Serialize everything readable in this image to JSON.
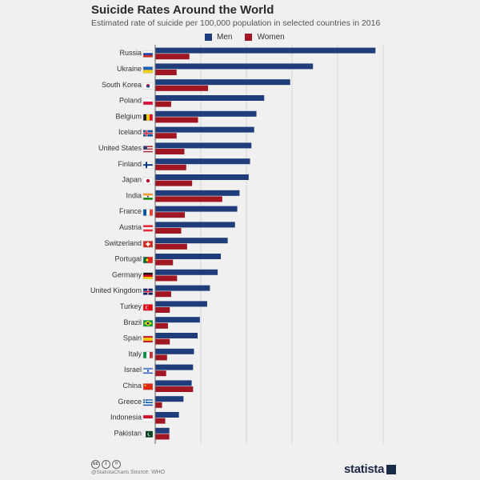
{
  "chart_data": {
    "type": "bar",
    "orientation": "horizontal",
    "title": "Suicide Rates Around the World",
    "subtitle": "Estimated rate of suicide per 100,000 population in selected countries in 2016",
    "xlim": [
      0,
      50
    ],
    "xticks": [
      "0",
      "10",
      "20",
      "30",
      "40",
      "50"
    ],
    "grid": true,
    "legend_position": "top",
    "categories": [
      "Russia",
      "Ukraine",
      "South Korea",
      "Poland",
      "Belgium",
      "Iceland",
      "United States",
      "Finland",
      "Japan",
      "India",
      "France",
      "Austria",
      "Switzerland",
      "Portugal",
      "Germany",
      "United Kingdom",
      "Turkey",
      "Brazil",
      "Spain",
      "Italy",
      "Israel",
      "China",
      "Greece",
      "Indonesia",
      "Pakistan"
    ],
    "series": [
      {
        "name": "Men",
        "color": "#1f3d7a",
        "values": [
          48.3,
          34.6,
          29.6,
          23.9,
          22.2,
          21.7,
          21.1,
          20.8,
          20.5,
          18.5,
          18.0,
          17.5,
          15.9,
          14.4,
          13.7,
          12.0,
          11.4,
          9.8,
          9.3,
          8.5,
          8.3,
          8.0,
          6.2,
          5.2,
          3.1
        ]
      },
      {
        "name": "Women",
        "color": "#a01622",
        "values": [
          7.5,
          4.7,
          11.6,
          3.5,
          9.4,
          4.7,
          6.4,
          6.8,
          8.1,
          14.7,
          6.5,
          5.7,
          7.0,
          3.9,
          4.8,
          3.5,
          3.2,
          2.8,
          3.2,
          2.6,
          2.4,
          8.3,
          1.5,
          2.2,
          3.1
        ]
      }
    ]
  },
  "flags": [
    "russia-flag-icon",
    "ukraine-flag-icon",
    "south-korea-flag-icon",
    "poland-flag-icon",
    "belgium-flag-icon",
    "iceland-flag-icon",
    "united-states-flag-icon",
    "finland-flag-icon",
    "japan-flag-icon",
    "india-flag-icon",
    "france-flag-icon",
    "austria-flag-icon",
    "switzerland-flag-icon",
    "portugal-flag-icon",
    "germany-flag-icon",
    "united-kingdom-flag-icon",
    "turkey-flag-icon",
    "brazil-flag-icon",
    "spain-flag-icon",
    "italy-flag-icon",
    "israel-flag-icon",
    "china-flag-icon",
    "greece-flag-icon",
    "indonesia-flag-icon",
    "pakistan-flag-icon"
  ],
  "footer": {
    "license_icons": [
      "cc-icon",
      "by-icon",
      "nd-icon"
    ],
    "handle": "@StatistaCharts",
    "source": "Source: WHO",
    "brand": "statista"
  }
}
